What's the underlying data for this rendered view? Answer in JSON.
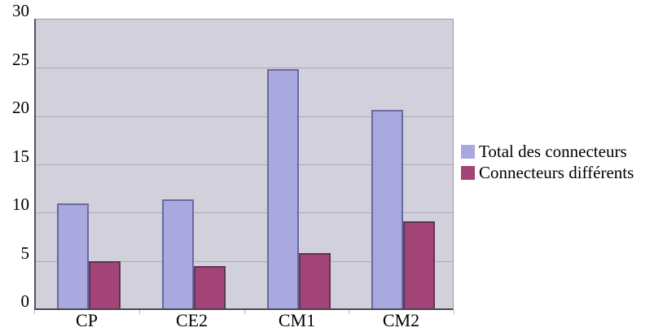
{
  "chart_data": {
    "type": "bar",
    "title": "",
    "xlabel": "",
    "ylabel": "",
    "categories": [
      "CP",
      "CE2",
      "CM1",
      "CM2"
    ],
    "series": [
      {
        "name": "Total des connecteurs",
        "color": "#a9a9e0",
        "border_color": "#6a6aa2",
        "values": [
          10.9,
          11.3,
          24.8,
          20.6
        ]
      },
      {
        "name": "Connecteurs différents",
        "color": "#a34478",
        "border_color": "#5e3458",
        "values": [
          4.9,
          4.4,
          5.7,
          9.0
        ]
      }
    ],
    "ylim": [
      0,
      30
    ],
    "yticks": [
      0,
      5,
      10,
      15,
      20,
      25,
      30
    ],
    "grid": "horizontal-only",
    "legend_position": "right-middle",
    "plot_bg_color": "#d2d0db",
    "gridline_color": "#aaa8b6",
    "axis_line_color": "#55525f",
    "frame_line_color": "#9b99a8",
    "text_color": "#000000",
    "outer_bg_color": "#ffffff"
  }
}
